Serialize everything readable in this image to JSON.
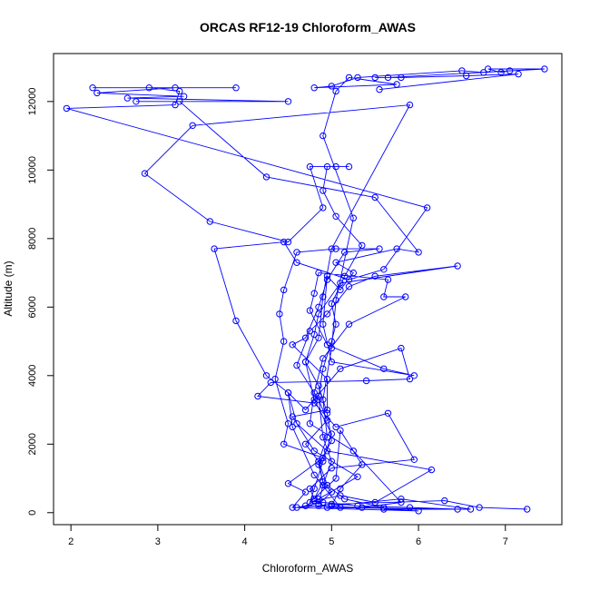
{
  "chart_data": {
    "type": "line",
    "title": "ORCAS RF12-19 Chloroform_AWAS",
    "xlabel": "Chloroform_AWAS",
    "ylabel": "Altitude (m)",
    "xlim": [
      1.8,
      7.65
    ],
    "ylim": [
      -350,
      13400
    ],
    "xticks": [
      2,
      3,
      4,
      5,
      6,
      7
    ],
    "yticks": [
      0,
      2000,
      4000,
      6000,
      8000,
      10000,
      12000
    ],
    "grid": false,
    "legend": "none",
    "marker": "open-circle",
    "series": [
      {
        "color": "#0000ff",
        "points": [
          [
            7.25,
            100
          ],
          [
            6.7,
            150
          ],
          [
            6.3,
            350
          ],
          [
            5.0,
            250
          ],
          [
            4.85,
            200
          ],
          [
            4.6,
            150
          ],
          [
            4.9,
            300
          ],
          [
            5.3,
            200
          ],
          [
            5.9,
            150
          ],
          [
            6.45,
            100
          ],
          [
            4.95,
            150
          ],
          [
            4.8,
            350
          ],
          [
            5.1,
            500
          ],
          [
            5.5,
            300
          ],
          [
            6.15,
            1250
          ],
          [
            4.95,
            1800
          ],
          [
            4.6,
            2600
          ],
          [
            4.5,
            3500
          ],
          [
            4.7,
            3000
          ],
          [
            5.1,
            4200
          ],
          [
            5.8,
            4800
          ],
          [
            5.9,
            3900
          ],
          [
            5.4,
            3850
          ],
          [
            4.3,
            3800
          ],
          [
            4.15,
            3400
          ],
          [
            4.8,
            3200
          ],
          [
            5.05,
            2500
          ],
          [
            5.65,
            2900
          ],
          [
            5.95,
            1550
          ],
          [
            5.0,
            1300
          ],
          [
            4.75,
            700
          ],
          [
            4.8,
            400
          ],
          [
            4.9,
            900
          ],
          [
            4.85,
            1500
          ],
          [
            4.7,
            2000
          ],
          [
            4.95,
            2700
          ],
          [
            4.85,
            3300
          ],
          [
            4.6,
            4300
          ],
          [
            4.75,
            5300
          ],
          [
            4.95,
            5800
          ],
          [
            5.2,
            6600
          ],
          [
            5.5,
            6900
          ],
          [
            6.45,
            7200
          ],
          [
            5.1,
            6700
          ],
          [
            4.85,
            5800
          ],
          [
            4.8,
            5200
          ],
          [
            4.7,
            4400
          ],
          [
            4.85,
            3700
          ],
          [
            4.95,
            2900
          ],
          [
            5.0,
            2100
          ],
          [
            4.85,
            1400
          ],
          [
            4.9,
            900
          ],
          [
            5.0,
            600
          ],
          [
            4.85,
            250
          ],
          [
            4.9,
            800
          ],
          [
            5.0,
            1500
          ],
          [
            4.9,
            2200
          ],
          [
            4.85,
            3400
          ],
          [
            4.9,
            4200
          ],
          [
            5.0,
            5000
          ],
          [
            5.05,
            5500
          ],
          [
            5.0,
            6100
          ],
          [
            5.15,
            6900
          ],
          [
            5.35,
            7800
          ],
          [
            5.05,
            8650
          ],
          [
            4.9,
            9400
          ],
          [
            4.95,
            10100
          ],
          [
            5.2,
            10100
          ],
          [
            5.05,
            10100
          ],
          [
            4.75,
            10100
          ],
          [
            4.9,
            8900
          ],
          [
            4.5,
            7900
          ],
          [
            3.6,
            8500
          ],
          [
            2.85,
            9900
          ],
          [
            3.4,
            11300
          ],
          [
            5.9,
            11900
          ],
          [
            5.0,
            7700
          ],
          [
            4.9,
            6300
          ],
          [
            4.85,
            5100
          ],
          [
            4.7,
            4400
          ],
          [
            4.8,
            3300
          ],
          [
            5.0,
            2300
          ],
          [
            4.9,
            1500
          ],
          [
            4.8,
            700
          ],
          [
            4.75,
            300
          ],
          [
            5.05,
            1000
          ],
          [
            5.1,
            2400
          ],
          [
            5.35,
            1400
          ],
          [
            5.1,
            700
          ],
          [
            5.0,
            200
          ],
          [
            5.8,
            400
          ],
          [
            6.6,
            100
          ],
          [
            5.6,
            100
          ],
          [
            6.0,
            50
          ],
          [
            4.55,
            150
          ],
          [
            4.7,
            600
          ],
          [
            4.5,
            850
          ],
          [
            4.9,
            1600
          ],
          [
            4.45,
            2000
          ],
          [
            4.5,
            2600
          ],
          [
            4.35,
            3900
          ],
          [
            4.45,
            5000
          ],
          [
            4.4,
            5800
          ],
          [
            4.45,
            6500
          ],
          [
            4.6,
            7600
          ],
          [
            5.05,
            7700
          ],
          [
            5.55,
            7700
          ],
          [
            5.15,
            7600
          ],
          [
            4.95,
            6800
          ],
          [
            4.85,
            6000
          ],
          [
            4.7,
            5100
          ],
          [
            4.55,
            4900
          ],
          [
            4.95,
            3900
          ],
          [
            4.95,
            3000
          ],
          [
            4.55,
            2800
          ],
          [
            4.8,
            1800
          ],
          [
            5.3,
            1050
          ],
          [
            4.85,
            400
          ],
          [
            4.7,
            200
          ],
          [
            5.35,
            150
          ],
          [
            5.8,
            300
          ],
          [
            5.25,
            1800
          ],
          [
            4.75,
            2600
          ],
          [
            4.8,
            3500
          ],
          [
            4.9,
            4500
          ],
          [
            5.2,
            5500
          ],
          [
            5.85,
            6300
          ],
          [
            5.6,
            6300
          ],
          [
            5.65,
            6800
          ],
          [
            4.85,
            7000
          ],
          [
            4.8,
            6400
          ],
          [
            4.75,
            5900
          ],
          [
            4.95,
            4900
          ],
          [
            5.6,
            4200
          ],
          [
            5.95,
            4000
          ],
          [
            5.0,
            4400
          ],
          [
            4.9,
            5500
          ],
          [
            4.95,
            6900
          ],
          [
            5.1,
            6500
          ],
          [
            5.25,
            7000
          ],
          [
            5.05,
            7300
          ],
          [
            5.75,
            7700
          ],
          [
            6.0,
            7600
          ],
          [
            5.5,
            9200
          ],
          [
            4.25,
            9800
          ],
          [
            3.25,
            12000
          ],
          [
            2.75,
            12000
          ],
          [
            4.5,
            12000
          ],
          [
            2.65,
            12100
          ],
          [
            3.3,
            12150
          ],
          [
            2.3,
            12250
          ],
          [
            3.2,
            12400
          ],
          [
            2.25,
            12400
          ],
          [
            3.9,
            12400
          ],
          [
            2.9,
            12400
          ],
          [
            3.25,
            12300
          ],
          [
            3.2,
            11900
          ],
          [
            1.95,
            11800
          ],
          [
            6.1,
            8900
          ],
          [
            5.6,
            7100
          ],
          [
            5.2,
            6800
          ],
          [
            4.6,
            7300
          ],
          [
            4.45,
            7900
          ],
          [
            3.65,
            7700
          ],
          [
            3.9,
            5600
          ],
          [
            4.25,
            4000
          ],
          [
            4.5,
            3500
          ],
          [
            4.55,
            2500
          ],
          [
            4.8,
            1100
          ],
          [
            5.1,
            150
          ],
          [
            5.6,
            150
          ],
          [
            5.15,
            400
          ],
          [
            4.95,
            800
          ],
          [
            4.85,
            1500
          ],
          [
            4.95,
            2200
          ],
          [
            4.9,
            3300
          ],
          [
            5.0,
            4800
          ],
          [
            5.05,
            6200
          ],
          [
            5.25,
            8600
          ],
          [
            4.9,
            11000
          ],
          [
            5.05,
            12300
          ],
          [
            5.2,
            12700
          ],
          [
            5.75,
            12500
          ],
          [
            4.8,
            12400
          ],
          [
            5.0,
            12450
          ],
          [
            5.3,
            12700
          ],
          [
            6.5,
            12900
          ],
          [
            6.75,
            12850
          ],
          [
            7.05,
            12900
          ],
          [
            6.95,
            12850
          ],
          [
            6.8,
            12950
          ],
          [
            7.45,
            12950
          ],
          [
            5.65,
            12700
          ],
          [
            5.5,
            12700
          ],
          [
            5.8,
            12700
          ],
          [
            6.55,
            12750
          ],
          [
            7.15,
            12800
          ],
          [
            5.55,
            12350
          ]
        ]
      }
    ]
  }
}
